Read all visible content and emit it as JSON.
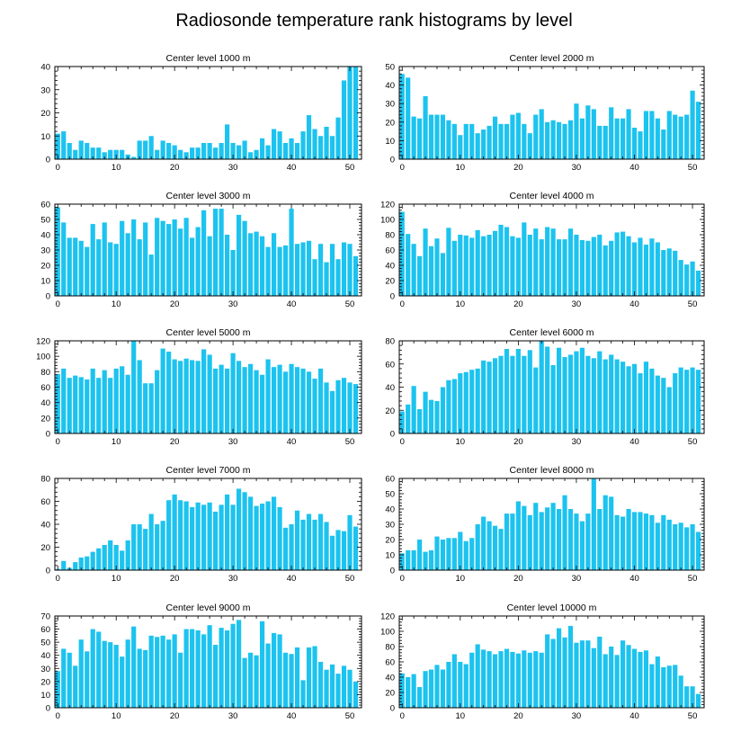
{
  "title": "Radiosonde temperature rank histograms by level",
  "bar_color": "#1cc3ef",
  "chart_data": [
    {
      "type": "bar",
      "title": "Center level 1000 m",
      "ylim": [
        0,
        40
      ],
      "yticks": [
        0,
        10,
        20,
        30,
        40
      ],
      "xlim": [
        -0.5,
        52
      ],
      "xticks": [
        0,
        10,
        20,
        30,
        40,
        50
      ],
      "values": [
        11,
        12,
        7,
        4,
        8,
        7,
        5,
        5,
        3,
        4,
        4,
        4,
        2,
        1,
        8,
        8,
        10,
        4,
        8,
        7,
        6,
        4,
        3,
        5,
        5,
        7,
        7,
        5,
        7,
        15,
        7,
        6,
        8,
        3,
        4,
        9,
        6,
        13,
        12,
        7,
        9,
        7,
        12,
        19,
        13,
        10,
        14,
        10,
        18,
        34,
        40,
        40
      ]
    },
    {
      "type": "bar",
      "title": "Center level 2000 m",
      "ylim": [
        0,
        50
      ],
      "yticks": [
        0,
        10,
        20,
        30,
        40,
        50
      ],
      "xlim": [
        -0.5,
        52
      ],
      "xticks": [
        0,
        10,
        20,
        30,
        40,
        50
      ],
      "values": [
        46,
        44,
        23,
        22,
        34,
        24,
        24,
        24,
        21,
        19,
        13,
        19,
        19,
        14,
        16,
        18,
        23,
        19,
        19,
        24,
        25,
        19,
        14,
        24,
        27,
        20,
        21,
        20,
        19,
        21,
        30,
        22,
        29,
        27,
        18,
        18,
        28,
        22,
        22,
        27,
        17,
        15,
        26,
        26,
        22,
        16,
        26,
        24,
        23,
        24,
        37,
        31
      ]
    },
    {
      "type": "bar",
      "title": "Center level 3000 m",
      "ylim": [
        0,
        60
      ],
      "yticks": [
        0,
        10,
        20,
        30,
        40,
        50,
        60
      ],
      "xlim": [
        -0.5,
        52
      ],
      "xticks": [
        0,
        10,
        20,
        30,
        40,
        50
      ],
      "values": [
        58,
        48,
        38,
        38,
        36,
        32,
        47,
        37,
        48,
        35,
        34,
        49,
        41,
        50,
        37,
        48,
        27,
        51,
        49,
        47,
        50,
        44,
        51,
        38,
        45,
        56,
        39,
        57,
        57,
        40,
        30,
        53,
        49,
        41,
        42,
        39,
        32,
        41,
        32,
        33,
        57,
        34,
        35,
        36,
        24,
        34,
        22,
        34,
        24,
        35,
        34,
        26
      ]
    },
    {
      "type": "bar",
      "title": "Center level 4000 m",
      "ylim": [
        0,
        120
      ],
      "yticks": [
        0,
        20,
        40,
        60,
        80,
        100,
        120
      ],
      "xlim": [
        -0.5,
        52
      ],
      "xticks": [
        0,
        10,
        20,
        30,
        40,
        50
      ],
      "values": [
        110,
        81,
        68,
        52,
        88,
        65,
        75,
        56,
        89,
        72,
        80,
        79,
        76,
        86,
        78,
        80,
        85,
        93,
        90,
        78,
        76,
        96,
        80,
        88,
        74,
        90,
        88,
        74,
        74,
        88,
        80,
        73,
        72,
        77,
        80,
        66,
        72,
        83,
        84,
        78,
        70,
        76,
        67,
        75,
        70,
        60,
        62,
        59,
        47,
        41,
        45,
        33
      ]
    },
    {
      "type": "bar",
      "title": "Center level 5000 m",
      "ylim": [
        0,
        120
      ],
      "yticks": [
        0,
        20,
        40,
        60,
        80,
        100,
        120
      ],
      "xlim": [
        -0.5,
        52
      ],
      "xticks": [
        0,
        10,
        20,
        30,
        40,
        50
      ],
      "values": [
        77,
        84,
        72,
        75,
        73,
        70,
        84,
        72,
        82,
        72,
        84,
        87,
        76,
        120,
        95,
        65,
        65,
        82,
        110,
        106,
        96,
        94,
        97,
        95,
        94,
        109,
        102,
        84,
        89,
        84,
        104,
        94,
        86,
        90,
        82,
        76,
        96,
        86,
        89,
        80,
        90,
        86,
        84,
        80,
        71,
        84,
        66,
        55,
        69,
        72,
        66,
        64
      ]
    },
    {
      "type": "bar",
      "title": "Center level 6000 m",
      "ylim": [
        0,
        80
      ],
      "yticks": [
        0,
        20,
        40,
        60,
        80
      ],
      "xlim": [
        -0.5,
        52
      ],
      "xticks": [
        0,
        10,
        20,
        30,
        40,
        50
      ],
      "values": [
        19,
        25,
        41,
        21,
        36,
        29,
        28,
        40,
        46,
        47,
        52,
        53,
        55,
        56,
        63,
        62,
        65,
        67,
        73,
        67,
        73,
        67,
        72,
        57,
        80,
        75,
        59,
        74,
        66,
        68,
        71,
        74,
        67,
        65,
        71,
        64,
        68,
        64,
        62,
        58,
        60,
        52,
        62,
        56,
        50,
        48,
        40,
        52,
        57,
        55,
        57,
        55
      ]
    },
    {
      "type": "bar",
      "title": "Center level 7000 m",
      "ylim": [
        0,
        80
      ],
      "yticks": [
        0,
        20,
        40,
        60,
        80
      ],
      "xlim": [
        -0.5,
        52
      ],
      "xticks": [
        0,
        10,
        20,
        30,
        40,
        50
      ],
      "values": [
        1,
        8,
        2,
        7,
        11,
        12,
        16,
        19,
        22,
        26,
        22,
        17,
        26,
        40,
        40,
        36,
        49,
        40,
        43,
        61,
        66,
        61,
        60,
        55,
        59,
        57,
        59,
        51,
        57,
        66,
        57,
        71,
        68,
        64,
        56,
        58,
        60,
        64,
        55,
        37,
        40,
        52,
        44,
        49,
        44,
        49,
        42,
        30,
        35,
        34,
        48,
        38
      ]
    },
    {
      "type": "bar",
      "title": "Center level 8000 m",
      "ylim": [
        0,
        60
      ],
      "yticks": [
        0,
        10,
        20,
        30,
        40,
        50,
        60
      ],
      "xlim": [
        -0.5,
        52
      ],
      "xticks": [
        0,
        10,
        20,
        30,
        40,
        50
      ],
      "values": [
        11,
        13,
        13,
        20,
        12,
        13,
        22,
        20,
        21,
        21,
        25,
        19,
        21,
        30,
        35,
        32,
        29,
        27,
        37,
        37,
        45,
        42,
        36,
        44,
        38,
        41,
        44,
        40,
        49,
        40,
        37,
        32,
        37,
        60,
        40,
        49,
        48,
        36,
        35,
        40,
        38,
        38,
        37,
        36,
        31,
        36,
        33,
        30,
        31,
        28,
        30,
        25
      ]
    },
    {
      "type": "bar",
      "title": "Center level 9000 m",
      "ylim": [
        0,
        70
      ],
      "yticks": [
        0,
        10,
        20,
        30,
        40,
        50,
        60,
        70
      ],
      "xlim": [
        -0.5,
        52
      ],
      "xticks": [
        0,
        10,
        20,
        30,
        40,
        50
      ],
      "values": [
        28,
        45,
        42,
        32,
        52,
        43,
        60,
        58,
        51,
        50,
        48,
        39,
        52,
        62,
        45,
        44,
        55,
        54,
        55,
        52,
        56,
        42,
        60,
        60,
        59,
        56,
        63,
        48,
        61,
        59,
        64,
        67,
        38,
        42,
        40,
        66,
        49,
        57,
        56,
        42,
        41,
        46,
        21,
        46,
        47,
        35,
        29,
        33,
        26,
        32,
        29,
        20
      ]
    },
    {
      "type": "bar",
      "title": "Center level 10000 m",
      "ylim": [
        0,
        120
      ],
      "yticks": [
        0,
        20,
        40,
        60,
        80,
        100,
        120
      ],
      "xlim": [
        -0.5,
        52
      ],
      "xticks": [
        0,
        10,
        20,
        30,
        40,
        50
      ],
      "values": [
        45,
        40,
        44,
        27,
        48,
        50,
        56,
        50,
        60,
        70,
        60,
        57,
        72,
        83,
        76,
        74,
        70,
        74,
        77,
        73,
        71,
        75,
        72,
        74,
        72,
        96,
        90,
        104,
        92,
        107,
        85,
        88,
        88,
        78,
        93,
        70,
        80,
        69,
        88,
        82,
        77,
        73,
        75,
        57,
        67,
        53,
        55,
        56,
        42,
        28,
        28,
        18
      ]
    }
  ]
}
